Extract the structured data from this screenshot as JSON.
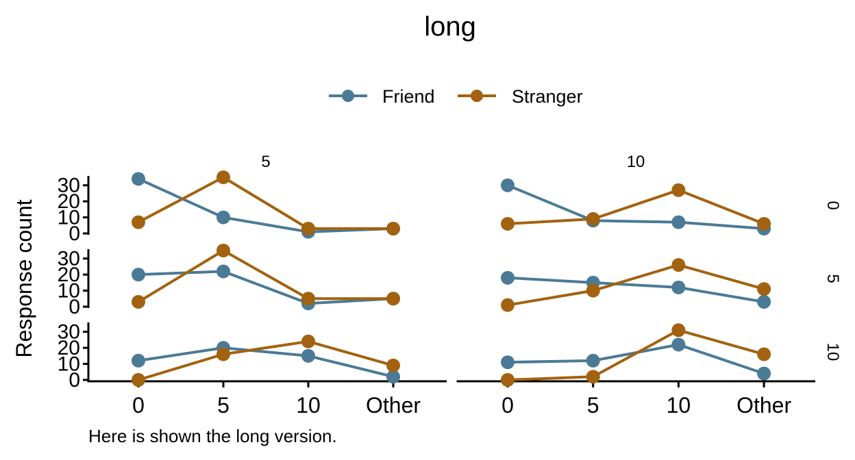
{
  "chart_data": {
    "type": "line",
    "title": "long",
    "caption": "Here is shown the long version.",
    "ylabel": "Response count",
    "xlabel": "",
    "categories": [
      "0",
      "5",
      "10",
      "Other"
    ],
    "y_ticks": [
      "0",
      "10",
      "20",
      "30"
    ],
    "ylim": [
      0,
      35
    ],
    "grid": false,
    "legend_position": "top",
    "col_facets": [
      "5",
      "10"
    ],
    "row_facets": [
      "0",
      "5",
      "10"
    ],
    "series_meta": [
      {
        "name": "Friend",
        "color": "#4a7a96"
      },
      {
        "name": "Stranger",
        "color": "#a3620f"
      }
    ],
    "panels": [
      {
        "col": "5",
        "row": "0",
        "series": [
          {
            "name": "Friend",
            "values": [
              34,
              10,
              1,
              3
            ]
          },
          {
            "name": "Stranger",
            "values": [
              7,
              35,
              3,
              3
            ]
          }
        ]
      },
      {
        "col": "10",
        "row": "0",
        "series": [
          {
            "name": "Friend",
            "values": [
              30,
              8,
              7,
              3
            ]
          },
          {
            "name": "Stranger",
            "values": [
              6,
              9,
              27,
              6
            ]
          }
        ]
      },
      {
        "col": "5",
        "row": "5",
        "series": [
          {
            "name": "Friend",
            "values": [
              20,
              22,
              2,
              5
            ]
          },
          {
            "name": "Stranger",
            "values": [
              3,
              35,
              5,
              5
            ]
          }
        ]
      },
      {
        "col": "10",
        "row": "5",
        "series": [
          {
            "name": "Friend",
            "values": [
              18,
              15,
              12,
              3
            ]
          },
          {
            "name": "Stranger",
            "values": [
              1,
              10,
              26,
              11
            ]
          }
        ]
      },
      {
        "col": "5",
        "row": "10",
        "series": [
          {
            "name": "Friend",
            "values": [
              12,
              20,
              15,
              2
            ]
          },
          {
            "name": "Stranger",
            "values": [
              0,
              16,
              24,
              9
            ]
          }
        ]
      },
      {
        "col": "10",
        "row": "10",
        "series": [
          {
            "name": "Friend",
            "values": [
              11,
              12,
              22,
              4
            ]
          },
          {
            "name": "Stranger",
            "values": [
              0,
              2,
              31,
              16
            ]
          }
        ]
      }
    ]
  }
}
